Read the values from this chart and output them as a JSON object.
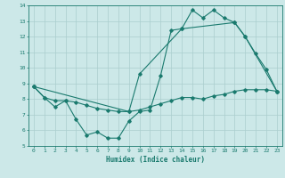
{
  "xlabel": "Humidex (Indice chaleur)",
  "ylabel": "",
  "bg_color": "#cce8e8",
  "grid_color": "#aacece",
  "line_color": "#1a7a6e",
  "xlim": [
    -0.5,
    23.5
  ],
  "ylim": [
    5,
    14
  ],
  "xticks": [
    0,
    1,
    2,
    3,
    4,
    5,
    6,
    7,
    8,
    9,
    10,
    11,
    12,
    13,
    14,
    15,
    16,
    17,
    18,
    19,
    20,
    21,
    22,
    23
  ],
  "yticks": [
    5,
    6,
    7,
    8,
    9,
    10,
    11,
    12,
    13,
    14
  ],
  "line1_x": [
    0,
    1,
    2,
    3,
    4,
    5,
    6,
    7,
    8,
    9,
    10,
    11,
    12,
    13,
    14,
    15,
    16,
    17,
    18,
    19,
    20,
    21,
    22,
    23
  ],
  "line1_y": [
    8.8,
    8.1,
    7.5,
    7.9,
    6.7,
    5.7,
    5.9,
    5.5,
    5.5,
    6.6,
    7.2,
    7.3,
    9.5,
    12.4,
    12.5,
    13.7,
    13.2,
    13.7,
    13.2,
    12.9,
    12.0,
    10.9,
    9.9,
    8.5
  ],
  "line2_x": [
    0,
    1,
    2,
    3,
    4,
    5,
    6,
    7,
    8,
    9,
    10,
    11,
    12,
    13,
    14,
    15,
    16,
    17,
    18,
    19,
    20,
    21,
    22,
    23
  ],
  "line2_y": [
    8.8,
    8.1,
    7.9,
    7.9,
    7.8,
    7.6,
    7.4,
    7.3,
    7.2,
    7.2,
    7.3,
    7.5,
    7.7,
    7.9,
    8.1,
    8.1,
    8.0,
    8.2,
    8.3,
    8.5,
    8.6,
    8.6,
    8.6,
    8.5
  ],
  "line3_x": [
    0,
    9,
    10,
    14,
    19,
    20,
    23
  ],
  "line3_y": [
    8.8,
    7.2,
    9.6,
    12.5,
    12.9,
    12.0,
    8.5
  ]
}
